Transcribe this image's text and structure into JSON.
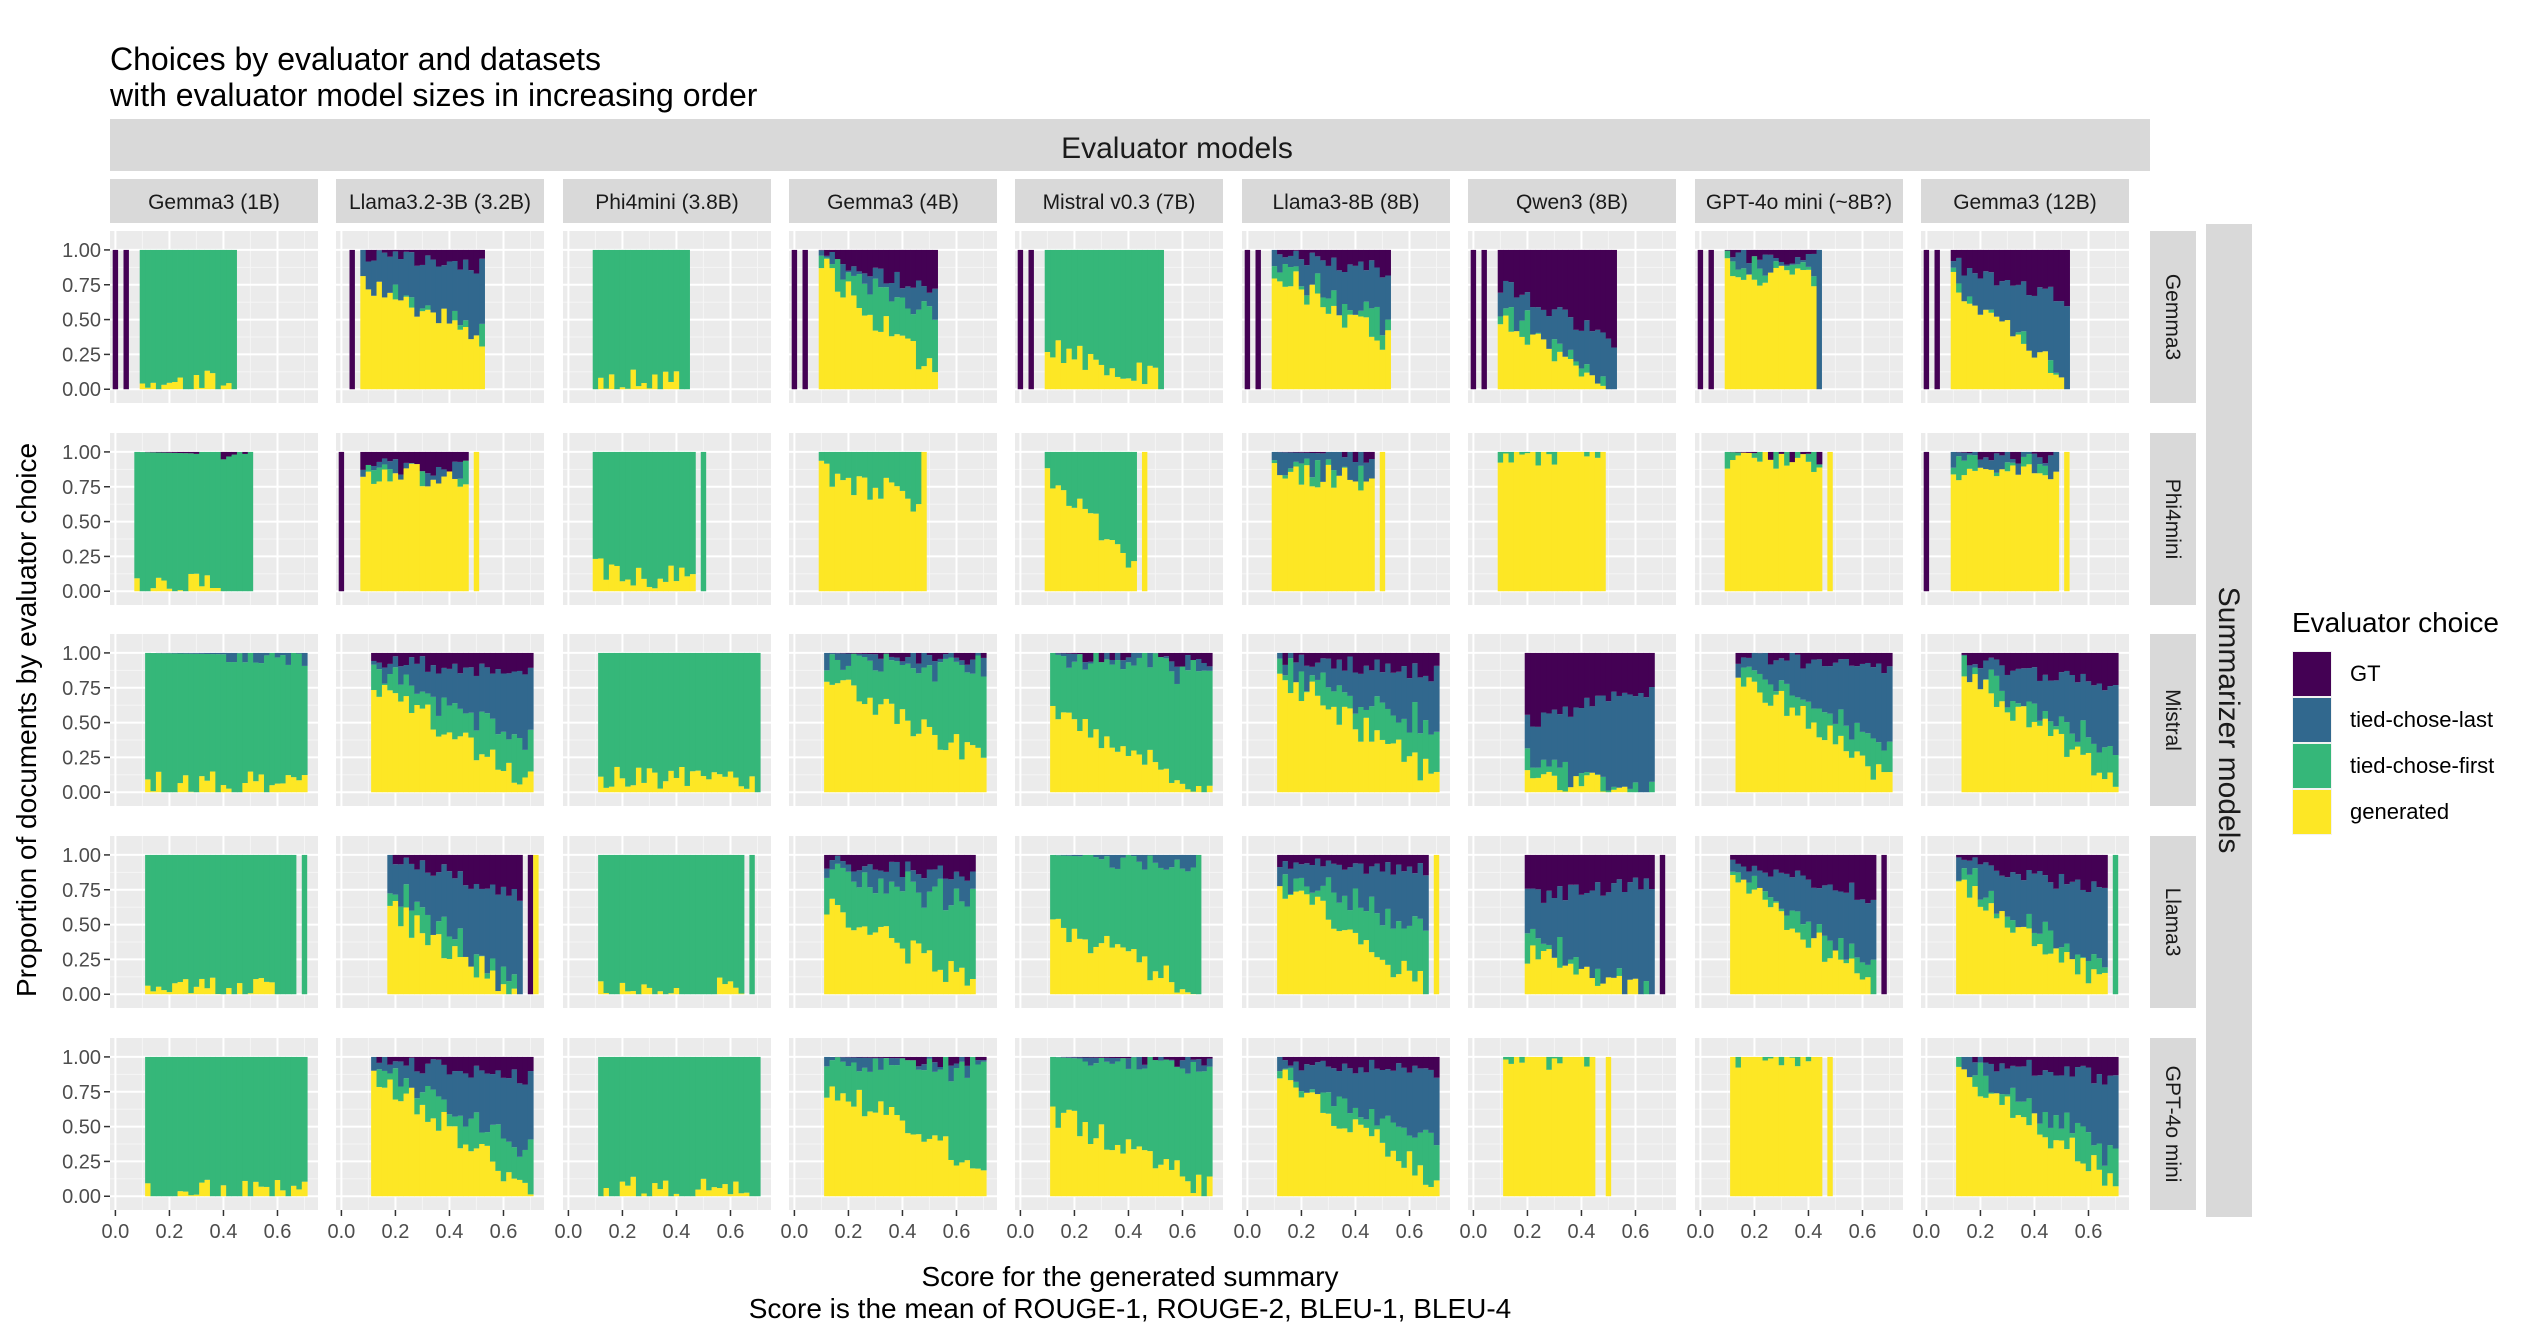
{
  "chart_data": {
    "type": "bar",
    "subtype": "faceted stacked proportion bars",
    "title": [
      "Choices by evaluator and datasets",
      "with evaluator model sizes in increasing order"
    ],
    "column_strip_title": "Evaluator models",
    "row_strip_title": "Summarizer models",
    "xlabel": [
      "Score for the generated summary",
      "Score is the mean of ROUGE-1, ROUGE-2, BLEU-1, BLEU-4"
    ],
    "ylabel": "Proportion of documents by evaluator choice",
    "xlim": [
      -0.02,
      0.75
    ],
    "ylim": [
      0,
      1
    ],
    "x_ticks": [
      "0.0",
      "0.2",
      "0.4",
      "0.6"
    ],
    "y_ticks": [
      "0.00",
      "0.25",
      "0.50",
      "0.75",
      "1.00"
    ],
    "bin_width": 0.02,
    "grid": true,
    "legend": {
      "title": "Evaluator choice",
      "position": "right",
      "entries": [
        {
          "name": "GT",
          "color": "#440154"
        },
        {
          "name": "tied-chose-last",
          "color": "#31688E"
        },
        {
          "name": "tied-chose-first",
          "color": "#35B779"
        },
        {
          "name": "generated",
          "color": "#FDE725"
        }
      ]
    },
    "evaluators": [
      "Gemma3 (1B)",
      "Llama3.2-3B (3.2B)",
      "Phi4mini (3.8B)",
      "Gemma3 (4B)",
      "Mistral v0.3 (7B)",
      "Llama3-8B (8B)",
      "Qwen3 (8B)",
      "GPT-4o mini (~8B?)",
      "Gemma3 (12B)"
    ],
    "summarizers": [
      "Gemma3",
      "Phi4mini",
      "Mistral",
      "Llama3",
      "GPT-4o mini"
    ],
    "series_order_bottom_to_top": [
      "generated",
      "tied-chose-first",
      "tied-chose-last",
      "GT"
    ],
    "panels": [
      [
        {
          "x_min": 0.1,
          "x_max": 0.42,
          "gt": [
            0.0,
            0.0
          ],
          "last": [
            0.0,
            0.0
          ],
          "gen": [
            0.0,
            0.08
          ],
          "iso": [
            [
              0.0,
              "GT"
            ],
            [
              0.04,
              "GT"
            ],
            [
              0.44,
              "tied-chose-first"
            ]
          ]
        },
        {
          "x_min": 0.08,
          "x_max": 0.52,
          "gt": [
            0.02,
            0.12
          ],
          "last": [
            0.2,
            0.45
          ],
          "gen": [
            0.85,
            0.4
          ],
          "iso": [
            [
              0.04,
              "GT"
            ]
          ]
        },
        {
          "x_min": 0.1,
          "x_max": 0.42,
          "gt": [
            0.0,
            0.0
          ],
          "last": [
            0.0,
            0.0
          ],
          "gen": [
            0.05,
            0.04
          ],
          "iso": [
            [
              0.44,
              "tied-chose-first"
            ]
          ]
        },
        {
          "x_min": 0.1,
          "x_max": 0.52,
          "gt": [
            0.03,
            0.3
          ],
          "last": [
            0.02,
            0.15
          ],
          "gen": [
            0.9,
            0.1
          ],
          "iso": [
            [
              0.0,
              "GT"
            ],
            [
              0.04,
              "GT"
            ]
          ]
        },
        {
          "x_min": 0.1,
          "x_max": 0.52,
          "gt": [
            0.0,
            0.0
          ],
          "last": [
            0.0,
            0.0
          ],
          "gen": [
            0.3,
            0.05
          ],
          "iso": [
            [
              0.0,
              "GT"
            ],
            [
              0.04,
              "GT"
            ]
          ]
        },
        {
          "x_min": 0.1,
          "x_max": 0.52,
          "gt": [
            0.03,
            0.15
          ],
          "last": [
            0.1,
            0.35
          ],
          "gen": [
            0.85,
            0.35
          ],
          "iso": [
            [
              0.0,
              "GT"
            ],
            [
              0.04,
              "GT"
            ]
          ]
        },
        {
          "x_min": 0.1,
          "x_max": 0.52,
          "gt": [
            0.25,
            0.65
          ],
          "last": [
            0.15,
            0.35
          ],
          "gen": [
            0.55,
            0.0
          ],
          "iso": [
            [
              0.0,
              "GT"
            ],
            [
              0.04,
              "GT"
            ]
          ]
        },
        {
          "x_min": 0.1,
          "x_max": 0.42,
          "gt": [
            0.05,
            0.05
          ],
          "last": [
            0.05,
            0.1
          ],
          "gen": [
            0.85,
            0.8
          ],
          "iso": [
            [
              0.0,
              "GT"
            ],
            [
              0.04,
              "GT"
            ],
            [
              0.44,
              "tied-chose-last"
            ]
          ]
        },
        {
          "x_min": 0.1,
          "x_max": 0.52,
          "gt": [
            0.1,
            0.35
          ],
          "last": [
            0.1,
            0.55
          ],
          "gen": [
            0.8,
            0.1
          ],
          "iso": [
            [
              0.0,
              "GT"
            ],
            [
              0.04,
              "GT"
            ]
          ]
        }
      ],
      [
        {
          "x_min": 0.08,
          "x_max": 0.48,
          "gt": [
            0.0,
            0.02
          ],
          "last": [
            0.0,
            0.0
          ],
          "gen": [
            0.0,
            0.05
          ],
          "iso": [
            [
              0.5,
              "tied-chose-first"
            ]
          ]
        },
        {
          "x_min": 0.08,
          "x_max": 0.46,
          "gt": [
            0.1,
            0.12
          ],
          "last": [
            0.02,
            0.05
          ],
          "gen": [
            0.85,
            0.85
          ],
          "iso": [
            [
              0.0,
              "GT"
            ],
            [
              0.5,
              "generated"
            ]
          ]
        },
        {
          "x_min": 0.1,
          "x_max": 0.46,
          "gt": [
            0.0,
            0.0
          ],
          "last": [
            0.0,
            0.0
          ],
          "gen": [
            0.15,
            0.1
          ],
          "iso": [
            [
              0.5,
              "tied-chose-first"
            ]
          ]
        },
        {
          "x_min": 0.1,
          "x_max": 0.46,
          "gt": [
            0.0,
            0.0
          ],
          "last": [
            0.0,
            0.0
          ],
          "gen": [
            0.85,
            0.65
          ],
          "iso": [
            [
              0.48,
              "generated"
            ]
          ]
        },
        {
          "x_min": 0.1,
          "x_max": 0.42,
          "gt": [
            0.0,
            0.0
          ],
          "last": [
            0.0,
            0.0
          ],
          "gen": [
            0.8,
            0.2
          ],
          "iso": [
            [
              0.46,
              "generated"
            ]
          ]
        },
        {
          "x_min": 0.1,
          "x_max": 0.46,
          "gt": [
            0.0,
            0.02
          ],
          "last": [
            0.1,
            0.15
          ],
          "gen": [
            0.85,
            0.8
          ],
          "iso": [
            [
              0.5,
              "generated"
            ]
          ]
        },
        {
          "x_min": 0.1,
          "x_max": 0.46,
          "gt": [
            0.0,
            0.0
          ],
          "last": [
            0.0,
            0.0
          ],
          "gen": [
            1.0,
            1.0
          ],
          "iso": [
            [
              0.48,
              "generated"
            ]
          ]
        },
        {
          "x_min": 0.1,
          "x_max": 0.44,
          "gt": [
            0.0,
            0.03
          ],
          "last": [
            0.0,
            0.0
          ],
          "gen": [
            0.97,
            0.95
          ],
          "iso": [
            [
              0.48,
              "generated"
            ]
          ]
        },
        {
          "x_min": 0.1,
          "x_max": 0.48,
          "gt": [
            0.0,
            0.05
          ],
          "last": [
            0.05,
            0.1
          ],
          "gen": [
            0.9,
            0.85
          ],
          "iso": [
            [
              0.0,
              "GT"
            ],
            [
              0.52,
              "generated"
            ]
          ]
        }
      ],
      [
        {
          "x_min": 0.12,
          "x_max": 0.7,
          "gt": [
            0.0,
            0.0
          ],
          "last": [
            0.0,
            0.02
          ],
          "gen": [
            0.05,
            0.05
          ],
          "iso": []
        },
        {
          "x_min": 0.12,
          "x_max": 0.7,
          "gt": [
            0.05,
            0.15
          ],
          "last": [
            0.05,
            0.5
          ],
          "gen": [
            0.8,
            0.05
          ],
          "iso": []
        },
        {
          "x_min": 0.12,
          "x_max": 0.7,
          "gt": [
            0.0,
            0.0
          ],
          "last": [
            0.0,
            0.0
          ],
          "gen": [
            0.12,
            0.05
          ],
          "iso": []
        },
        {
          "x_min": 0.12,
          "x_max": 0.7,
          "gt": [
            0.0,
            0.03
          ],
          "last": [
            0.05,
            0.1
          ],
          "gen": [
            0.8,
            0.25
          ],
          "iso": []
        },
        {
          "x_min": 0.12,
          "x_max": 0.7,
          "gt": [
            0.0,
            0.05
          ],
          "last": [
            0.02,
            0.05
          ],
          "gen": [
            0.6,
            0.0
          ],
          "iso": []
        },
        {
          "x_min": 0.12,
          "x_max": 0.7,
          "gt": [
            0.03,
            0.15
          ],
          "last": [
            0.05,
            0.4
          ],
          "gen": [
            0.85,
            0.1
          ],
          "iso": []
        },
        {
          "x_min": 0.2,
          "x_max": 0.66,
          "gt": [
            0.5,
            0.25
          ],
          "last": [
            0.3,
            0.75
          ],
          "gen": [
            0.15,
            0.0
          ],
          "iso": []
        },
        {
          "x_min": 0.14,
          "x_max": 0.7,
          "gt": [
            0.03,
            0.1
          ],
          "last": [
            0.05,
            0.6
          ],
          "gen": [
            0.85,
            0.1
          ],
          "iso": []
        },
        {
          "x_min": 0.14,
          "x_max": 0.7,
          "gt": [
            0.05,
            0.25
          ],
          "last": [
            0.05,
            0.5
          ],
          "gen": [
            0.85,
            0.1
          ],
          "iso": []
        }
      ],
      [
        {
          "x_min": 0.12,
          "x_max": 0.64,
          "gt": [
            0.0,
            0.0
          ],
          "last": [
            0.0,
            0.0
          ],
          "gen": [
            0.02,
            0.02
          ],
          "iso": [
            [
              0.66,
              "tied-chose-first"
            ],
            [
              0.7,
              "tied-chose-first"
            ]
          ]
        },
        {
          "x_min": 0.18,
          "x_max": 0.66,
          "gt": [
            0.0,
            0.3
          ],
          "last": [
            0.2,
            0.7
          ],
          "gen": [
            0.6,
            0.0
          ],
          "iso": [
            [
              0.7,
              "GT"
            ],
            [
              0.72,
              "generated"
            ]
          ]
        },
        {
          "x_min": 0.12,
          "x_max": 0.64,
          "gt": [
            0.0,
            0.0
          ],
          "last": [
            0.0,
            0.0
          ],
          "gen": [
            0.02,
            0.02
          ],
          "iso": [
            [
              0.68,
              "tied-chose-first"
            ]
          ]
        },
        {
          "x_min": 0.12,
          "x_max": 0.66,
          "gt": [
            0.05,
            0.15
          ],
          "last": [
            0.05,
            0.2
          ],
          "gen": [
            0.65,
            0.05
          ],
          "iso": []
        },
        {
          "x_min": 0.12,
          "x_max": 0.64,
          "gt": [
            0.0,
            0.0
          ],
          "last": [
            0.0,
            0.05
          ],
          "gen": [
            0.5,
            0.05
          ],
          "iso": [
            [
              0.66,
              "tied-chose-first"
            ]
          ]
        },
        {
          "x_min": 0.12,
          "x_max": 0.66,
          "gt": [
            0.05,
            0.1
          ],
          "last": [
            0.1,
            0.4
          ],
          "gen": [
            0.8,
            0.05
          ],
          "iso": [
            [
              0.7,
              "generated"
            ]
          ]
        },
        {
          "x_min": 0.2,
          "x_max": 0.66,
          "gt": [
            0.3,
            0.2
          ],
          "last": [
            0.3,
            0.8
          ],
          "gen": [
            0.3,
            0.0
          ],
          "iso": [
            [
              0.7,
              "GT"
            ]
          ]
        },
        {
          "x_min": 0.12,
          "x_max": 0.64,
          "gt": [
            0.03,
            0.3
          ],
          "last": [
            0.05,
            0.5
          ],
          "gen": [
            0.85,
            0.05
          ],
          "iso": [
            [
              0.68,
              "GT"
            ]
          ]
        },
        {
          "x_min": 0.12,
          "x_max": 0.66,
          "gt": [
            0.05,
            0.25
          ],
          "last": [
            0.1,
            0.6
          ],
          "gen": [
            0.8,
            0.1
          ],
          "iso": [
            [
              0.7,
              "tied-chose-first"
            ]
          ]
        }
      ],
      [
        {
          "x_min": 0.12,
          "x_max": 0.7,
          "gt": [
            0.0,
            0.0
          ],
          "last": [
            0.0,
            0.0
          ],
          "gen": [
            0.02,
            0.02
          ],
          "iso": []
        },
        {
          "x_min": 0.12,
          "x_max": 0.7,
          "gt": [
            0.02,
            0.15
          ],
          "last": [
            0.05,
            0.55
          ],
          "gen": [
            0.9,
            0.05
          ],
          "iso": []
        },
        {
          "x_min": 0.12,
          "x_max": 0.7,
          "gt": [
            0.0,
            0.0
          ],
          "last": [
            0.0,
            0.0
          ],
          "gen": [
            0.05,
            0.02
          ],
          "iso": []
        },
        {
          "x_min": 0.12,
          "x_max": 0.7,
          "gt": [
            0.0,
            0.02
          ],
          "last": [
            0.02,
            0.05
          ],
          "gen": [
            0.8,
            0.2
          ],
          "iso": []
        },
        {
          "x_min": 0.12,
          "x_max": 0.7,
          "gt": [
            0.0,
            0.02
          ],
          "last": [
            0.0,
            0.05
          ],
          "gen": [
            0.6,
            0.05
          ],
          "iso": []
        },
        {
          "x_min": 0.12,
          "x_max": 0.7,
          "gt": [
            0.03,
            0.1
          ],
          "last": [
            0.05,
            0.5
          ],
          "gen": [
            0.85,
            0.1
          ],
          "iso": []
        },
        {
          "x_min": 0.12,
          "x_max": 0.44,
          "gt": [
            0.0,
            0.0
          ],
          "last": [
            0.0,
            0.0
          ],
          "gen": [
            1.0,
            1.0
          ],
          "iso": [
            [
              0.5,
              "generated"
            ]
          ]
        },
        {
          "x_min": 0.12,
          "x_max": 0.44,
          "gt": [
            0.0,
            0.0
          ],
          "last": [
            0.0,
            0.0
          ],
          "gen": [
            1.0,
            1.0
          ],
          "iso": [
            [
              0.48,
              "generated"
            ]
          ]
        },
        {
          "x_min": 0.12,
          "x_max": 0.7,
          "gt": [
            0.02,
            0.15
          ],
          "last": [
            0.05,
            0.55
          ],
          "gen": [
            0.9,
            0.1
          ],
          "iso": []
        }
      ]
    ]
  }
}
